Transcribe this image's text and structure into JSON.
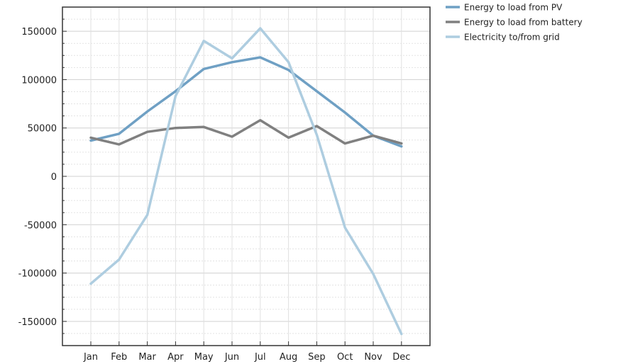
{
  "chart_data": {
    "type": "line",
    "title": "",
    "xlabel": "",
    "ylabel": "",
    "categories": [
      "Jan",
      "Feb",
      "Mar",
      "Apr",
      "May",
      "Jun",
      "Jul",
      "Aug",
      "Sep",
      "Oct",
      "Nov",
      "Dec"
    ],
    "ylim": [
      -175000,
      175000
    ],
    "yticks": [
      150000,
      100000,
      50000,
      0,
      -50000,
      -100000,
      -150000
    ],
    "ytick_labels": [
      "150000",
      "100000",
      "50000",
      "0",
      "-50000",
      "-100000",
      "-150000"
    ],
    "grid": true,
    "legend_position": "top-right, outside plot",
    "series": [
      {
        "name": "Energy to load from PV",
        "color": "#6fa0c4",
        "values": [
          37000,
          44000,
          67000,
          88000,
          111000,
          118000,
          123000,
          110000,
          88000,
          66000,
          42000,
          31000
        ]
      },
      {
        "name": "Energy to load from battery",
        "color": "#808080",
        "values": [
          40000,
          33000,
          46000,
          50000,
          51000,
          41000,
          58000,
          40000,
          52000,
          34000,
          42000,
          34000
        ]
      },
      {
        "name": "Electricity to/from grid",
        "color": "#aecde0",
        "values": [
          -111000,
          -86000,
          -40000,
          83000,
          140000,
          122000,
          153000,
          118000,
          43000,
          -53000,
          -101000,
          -163000
        ]
      }
    ]
  }
}
